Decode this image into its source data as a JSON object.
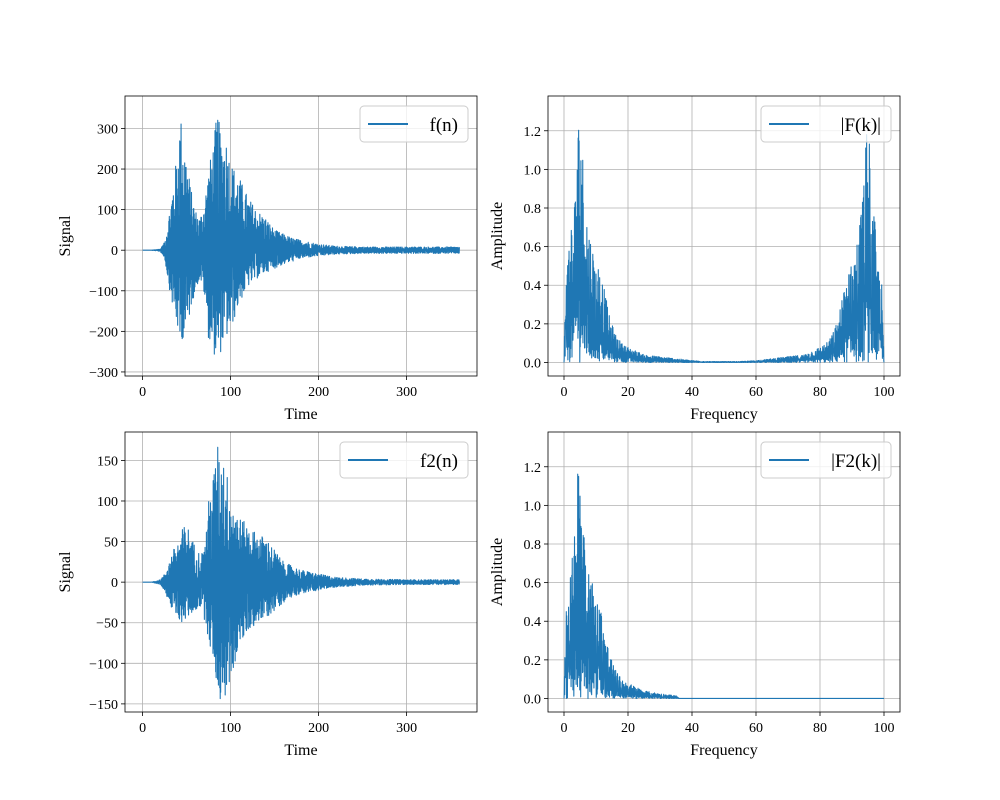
{
  "chart_data": [
    {
      "type": "line",
      "xlabel": "Time",
      "ylabel": "Signal",
      "xlim": [
        -20,
        380
      ],
      "ylim": [
        -310,
        380
      ],
      "xticks": [
        0,
        100,
        200,
        300
      ],
      "yticks": [
        -300,
        -200,
        -100,
        0,
        100,
        200,
        300
      ],
      "grid": true,
      "legend_position": "upper right",
      "color": "#1f77b4",
      "series": [
        {
          "name": "f(n)",
          "signal": "time",
          "x_range": [
            0,
            360
          ],
          "envelope": {
            "x": [
              0,
              10,
              20,
              25,
              30,
              35,
              40,
              43,
              45,
              50,
              55,
              60,
              65,
              70,
              75,
              80,
              85,
              88,
              90,
              95,
              100,
              110,
              120,
              130,
              140,
              150,
              160,
              170,
              180,
              200,
              220,
              250,
              300,
              360
            ],
            "upper": [
              0,
              0,
              3,
              20,
              90,
              170,
              250,
              340,
              300,
              230,
              150,
              100,
              80,
              120,
              200,
              260,
              345,
              300,
              280,
              280,
              220,
              180,
              130,
              100,
              80,
              50,
              40,
              30,
              25,
              15,
              10,
              8,
              8,
              8
            ],
            "lower": [
              0,
              0,
              -3,
              -20,
              -90,
              -150,
              -200,
              -255,
              -220,
              -210,
              -140,
              -100,
              -70,
              -110,
              -220,
              -250,
              -280,
              -260,
              -240,
              -220,
              -200,
              -130,
              -90,
              -70,
              -55,
              -45,
              -35,
              -28,
              -20,
              -14,
              -10,
              -8,
              -8,
              -8
            ]
          }
        }
      ]
    },
    {
      "type": "line",
      "xlabel": "Frequency",
      "ylabel": "Amplitude",
      "xlim": [
        -5,
        105
      ],
      "ylim": [
        -0.07,
        1.38
      ],
      "xticks": [
        0,
        20,
        40,
        60,
        80,
        100
      ],
      "yticks": [
        0.0,
        0.2,
        0.4,
        0.6,
        0.8,
        1.0,
        1.2
      ],
      "grid": true,
      "legend_position": "upper right",
      "color": "#1f77b4",
      "series": [
        {
          "name": "|F(k)|",
          "signal": "spectrum",
          "x_range": [
            0,
            100
          ],
          "envelope": {
            "x": [
              0,
              0.5,
              1,
              2,
              3,
              4,
              5,
              5.5,
              6,
              7,
              8,
              9,
              10,
              11,
              12,
              13,
              14,
              15,
              16,
              18,
              20,
              25,
              30,
              35,
              40,
              45,
              50,
              55,
              60,
              65,
              70,
              75,
              80,
              82,
              84,
              85,
              86,
              87,
              88,
              89,
              90,
              91,
              92,
              93,
              94,
              94.5,
              95,
              95.5,
              96,
              97,
              98,
              99,
              99.5,
              100
            ],
            "upper": [
              0.0,
              0.55,
              0.5,
              0.78,
              0.7,
              1.2,
              1.32,
              1.2,
              1.05,
              0.82,
              0.68,
              0.6,
              0.5,
              0.52,
              0.43,
              0.35,
              0.25,
              0.2,
              0.15,
              0.1,
              0.08,
              0.04,
              0.03,
              0.02,
              0.01,
              0.005,
              0.005,
              0.005,
              0.01,
              0.02,
              0.03,
              0.04,
              0.08,
              0.1,
              0.15,
              0.2,
              0.25,
              0.35,
              0.43,
              0.52,
              0.5,
              0.6,
              0.68,
              0.82,
              1.05,
              1.2,
              1.32,
              1.2,
              0.7,
              0.78,
              0.5,
              0.55,
              0.3,
              0.0
            ],
            "lower": [
              0,
              0,
              0,
              0,
              0,
              0,
              0,
              0,
              0,
              0,
              0,
              0,
              0,
              0,
              0,
              0,
              0,
              0,
              0,
              0,
              0,
              0,
              0,
              0,
              0,
              0,
              0,
              0,
              0,
              0,
              0,
              0,
              0,
              0,
              0,
              0,
              0,
              0,
              0,
              0,
              0,
              0,
              0,
              0,
              0,
              0,
              0,
              0,
              0,
              0,
              0,
              0,
              0,
              0
            ]
          }
        }
      ]
    },
    {
      "type": "line",
      "xlabel": "Time",
      "ylabel": "Signal",
      "xlim": [
        -20,
        380
      ],
      "ylim": [
        -160,
        185
      ],
      "xticks": [
        0,
        100,
        200,
        300
      ],
      "yticks": [
        -150,
        -100,
        -50,
        0,
        50,
        100,
        150
      ],
      "grid": true,
      "legend_position": "upper right",
      "color": "#1f77b4",
      "series": [
        {
          "name": "f2(n)",
          "signal": "time",
          "x_range": [
            0,
            360
          ],
          "envelope": {
            "x": [
              0,
              10,
              20,
              25,
              30,
              35,
              40,
              45,
              50,
              55,
              60,
              65,
              70,
              75,
              80,
              85,
              88,
              90,
              95,
              100,
              110,
              120,
              130,
              140,
              150,
              160,
              170,
              180,
              200,
              220,
              250,
              300,
              360
            ],
            "upper": [
              0,
              0,
              3,
              10,
              25,
              40,
              50,
              65,
              75,
              55,
              45,
              35,
              40,
              100,
              130,
              172,
              150,
              165,
              140,
              110,
              80,
              70,
              60,
              55,
              40,
              25,
              20,
              15,
              10,
              6,
              4,
              3,
              3
            ],
            "lower": [
              0,
              0,
              -3,
              -10,
              -25,
              -40,
              -45,
              -50,
              -45,
              -40,
              -35,
              -30,
              -45,
              -70,
              -100,
              -130,
              -148,
              -140,
              -145,
              -120,
              -80,
              -60,
              -50,
              -45,
              -35,
              -25,
              -18,
              -14,
              -10,
              -6,
              -4,
              -3,
              -3
            ]
          }
        }
      ]
    },
    {
      "type": "line",
      "xlabel": "Frequency",
      "ylabel": "Amplitude",
      "xlim": [
        -5,
        105
      ],
      "ylim": [
        -0.07,
        1.38
      ],
      "xticks": [
        0,
        20,
        40,
        60,
        80,
        100
      ],
      "yticks": [
        0.0,
        0.2,
        0.4,
        0.6,
        0.8,
        1.0,
        1.2
      ],
      "grid": true,
      "legend_position": "upper right",
      "color": "#1f77b4",
      "series": [
        {
          "name": "|F2(k)|",
          "signal": "spectrum",
          "x_range": [
            0,
            100
          ],
          "envelope": {
            "x": [
              0,
              0.5,
              1,
              2,
              3,
              4,
              5,
              5.5,
              6,
              7,
              8,
              9,
              10,
              11,
              12,
              13,
              14,
              15,
              16,
              18,
              20,
              25,
              30,
              35,
              36,
              40,
              60,
              80,
              100
            ],
            "upper": [
              0.0,
              0.55,
              0.5,
              0.78,
              0.7,
              1.2,
              1.32,
              1.2,
              1.05,
              0.82,
              0.68,
              0.6,
              0.5,
              0.52,
              0.43,
              0.35,
              0.25,
              0.2,
              0.15,
              0.1,
              0.08,
              0.04,
              0.025,
              0.015,
              0.0,
              0.0,
              0.0,
              0.0,
              0.0
            ],
            "lower": [
              0,
              0,
              0,
              0,
              0,
              0,
              0,
              0,
              0,
              0,
              0,
              0,
              0,
              0,
              0,
              0,
              0,
              0,
              0,
              0,
              0,
              0,
              0,
              0,
              0,
              0,
              0,
              0,
              0
            ]
          }
        }
      ]
    }
  ]
}
